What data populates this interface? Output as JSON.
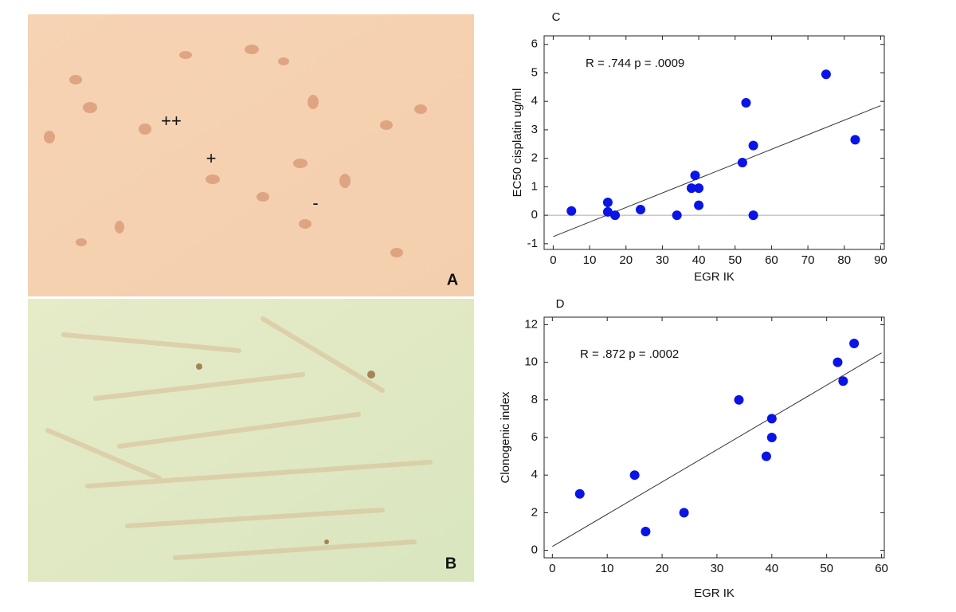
{
  "panels": [
    {
      "label": "A",
      "annotations": [
        "++",
        "+",
        "-"
      ]
    },
    {
      "label": "B"
    }
  ],
  "chart_data": [
    {
      "type": "scatter",
      "label": "C",
      "annotation": "R = .744 p = .0009",
      "x_label": "EGR IK",
      "y_label": "EC50  cisplatin ug/ml",
      "series": [
        {
          "color": "#0a14e6",
          "x": [
            5,
            15,
            15,
            17,
            24,
            34,
            38,
            39,
            40,
            40,
            52,
            53,
            55,
            55,
            75,
            83
          ],
          "values": [
            0.15,
            0.45,
            0.12,
            0,
            0.2,
            0,
            0.95,
            1.4,
            0.95,
            0.35,
            1.85,
            3.95,
            2.45,
            0,
            4.95,
            2.65
          ]
        }
      ],
      "trendline": {
        "x": [
          0,
          90
        ],
        "y": [
          -0.75,
          3.85
        ]
      },
      "zero_line": true,
      "xlim": [
        -2.5,
        91
      ],
      "ylim": [
        -1.2,
        6.3
      ],
      "xticks": [
        0,
        10,
        20,
        30,
        40,
        50,
        60,
        70,
        80,
        90
      ],
      "yticks": [
        -1,
        0,
        1,
        2,
        3,
        4,
        5,
        6
      ]
    },
    {
      "type": "scatter",
      "label": "D",
      "annotation": "R = .872 p = .0002",
      "x_label": "EGR IK",
      "y_label": "Clonogenic index",
      "series": [
        {
          "color": "#0a14e6",
          "x": [
            5,
            15,
            17,
            24,
            34,
            39,
            40,
            40,
            52,
            53,
            55
          ],
          "values": [
            3,
            4,
            1,
            2,
            8,
            5,
            7,
            6,
            10,
            9,
            11
          ]
        }
      ],
      "trendline": {
        "x": [
          0,
          60
        ],
        "y": [
          0.2,
          10.5
        ]
      },
      "zero_line": false,
      "xlim": [
        -1.5,
        60.5
      ],
      "ylim": [
        -0.4,
        12.4
      ],
      "xticks": [
        0,
        10,
        20,
        30,
        40,
        50,
        60
      ],
      "yticks": [
        0,
        2,
        4,
        6,
        8,
        10,
        12
      ]
    }
  ]
}
